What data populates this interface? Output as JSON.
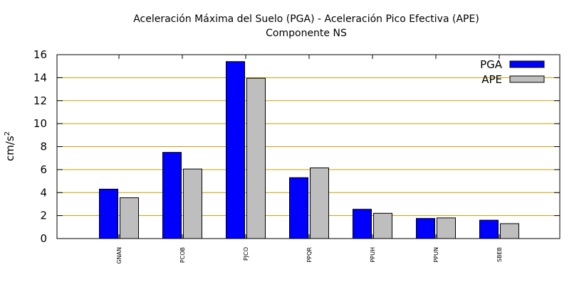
{
  "chart_data": {
    "type": "bar",
    "title": "Aceleración Máxima del Suelo (PGA) -  Aceleración Pico Efectiva (APE)",
    "subtitle": "Componente NS",
    "ylabel": "cm/s",
    "ylabel_sup": "2",
    "xlabel": "",
    "ylim": [
      0,
      16
    ],
    "yticks": [
      "0",
      "2",
      "4",
      "6",
      "8",
      "10",
      "12",
      "14",
      "16"
    ],
    "grid": true,
    "legend_position": "top-right",
    "categories": [
      "GNAN",
      "PCOB",
      "PJCO",
      "PPQR",
      "PPUH",
      "PPUN",
      "SBEB"
    ],
    "series": [
      {
        "name": "PGA",
        "color": "#0000ff",
        "values": [
          4.3,
          7.5,
          15.4,
          5.3,
          2.55,
          1.75,
          1.6
        ]
      },
      {
        "name": "APE",
        "color": "#bebebe",
        "values": [
          3.55,
          6.05,
          13.95,
          6.15,
          2.2,
          1.8,
          1.3
        ]
      }
    ],
    "grid_color": "#c8a000"
  }
}
